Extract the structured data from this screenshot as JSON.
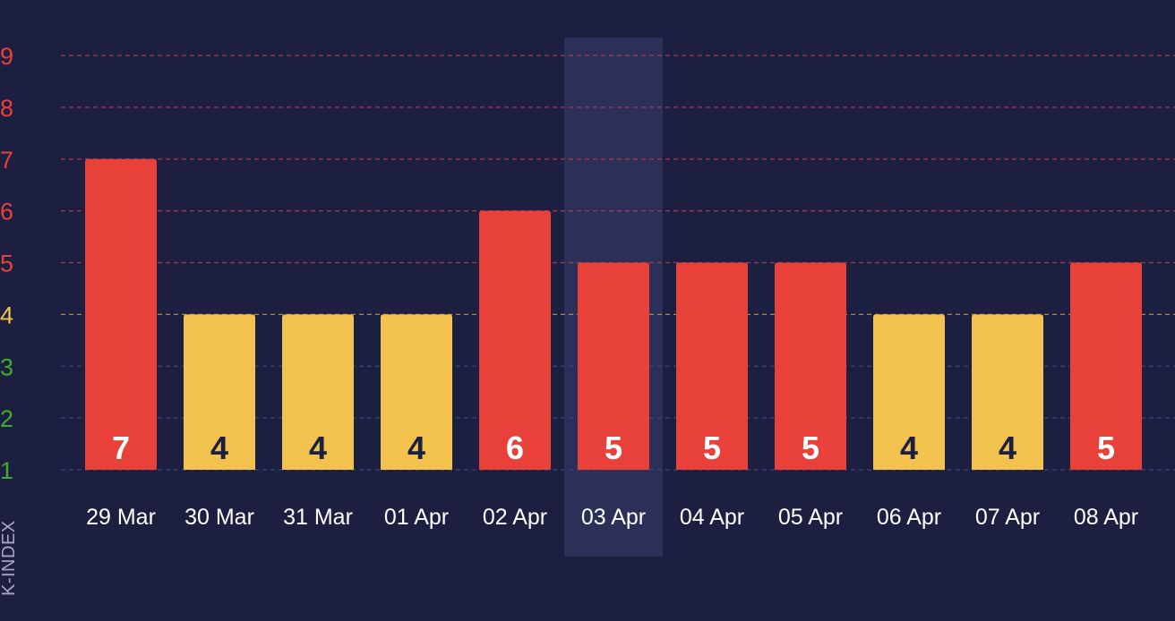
{
  "colors": {
    "background": "#1c1f3f",
    "storm": "#e8413a",
    "active": "#f2c14e",
    "quiet": "#3fae2e",
    "storm_grid": "#a83a4f",
    "active_grid": "#9e8a50",
    "quiet_grid": "#3e4478",
    "highlight": "#2c3058",
    "label_dark": "#1c1f3f",
    "label_light": "#ffffff"
  },
  "chart_data": {
    "type": "bar",
    "ylabel": "K-INDEX",
    "ylim": [
      1,
      9
    ],
    "yticks": [
      1,
      2,
      3,
      4,
      5,
      6,
      7,
      8,
      9
    ],
    "categories": [
      "29 Mar",
      "30 Mar",
      "31 Mar",
      "01 Apr",
      "02 Apr",
      "03 Apr",
      "04 Apr",
      "05 Apr",
      "06 Apr",
      "07 Apr",
      "08 Apr"
    ],
    "values": [
      7,
      4,
      4,
      4,
      6,
      5,
      5,
      5,
      4,
      4,
      5
    ],
    "highlighted_category": "03 Apr",
    "grid": true,
    "legend": "none"
  }
}
